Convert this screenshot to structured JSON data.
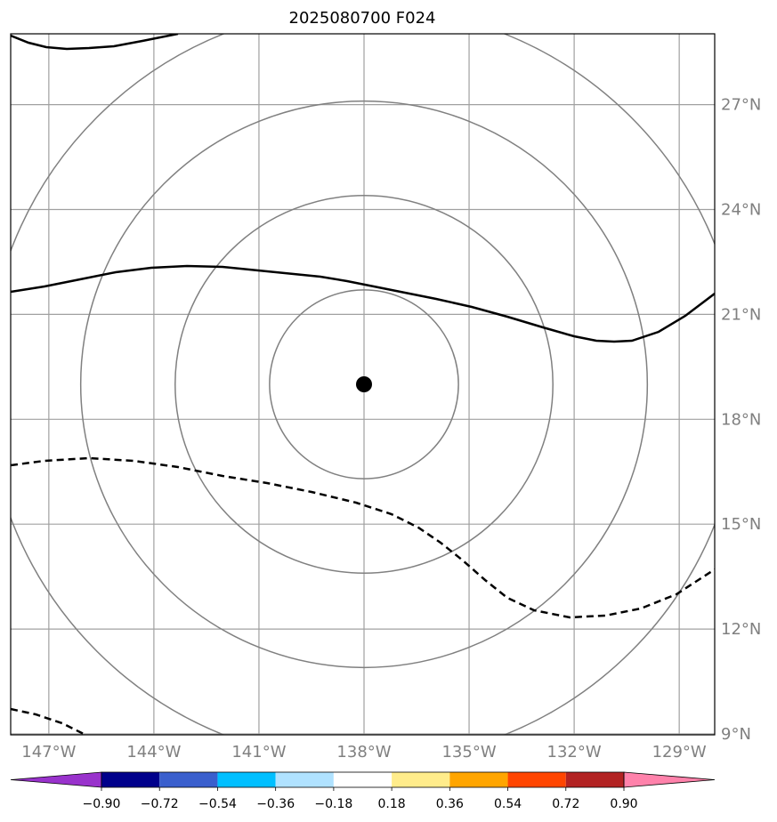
{
  "title": "2025080700 F024",
  "map": {
    "center_marker": {
      "lat": 19.0,
      "lon": -138.0,
      "color": "#000000"
    },
    "lat_labels": [
      "27°N",
      "24°N",
      "21°N",
      "18°N",
      "15°N",
      "12°N",
      "9°N"
    ],
    "lon_labels": [
      "147°W",
      "144°W",
      "141°W",
      "138°W",
      "135°W",
      "132°W",
      "129°W"
    ],
    "lat_values": [
      27,
      24,
      21,
      18,
      15,
      12,
      9
    ],
    "lon_values": [
      -147,
      -144,
      -141,
      -138,
      -135,
      -132,
      -129
    ],
    "lat_range": [
      9,
      29
    ],
    "lon_range": [
      -148,
      -128
    ],
    "grid": true,
    "range_rings_deg": [
      2.7,
      5.4,
      8.1,
      10.8
    ],
    "grid_color": "#a0a0a0",
    "ring_color": "#808080",
    "contour_color": "#000000"
  },
  "colorbar": {
    "tick_labels": [
      "−0.90",
      "−0.72",
      "−0.54",
      "−0.36",
      "−0.18",
      "0.18",
      "0.36",
      "0.54",
      "0.72",
      "0.90"
    ],
    "colors": [
      "#9932cc",
      "#00008b",
      "#3a5fcd",
      "#00bfff",
      "#b0e2ff",
      "#ffffff",
      "#ffec8b",
      "#ffa500",
      "#ff4500",
      "#b22222",
      "#ff82ab"
    ]
  }
}
